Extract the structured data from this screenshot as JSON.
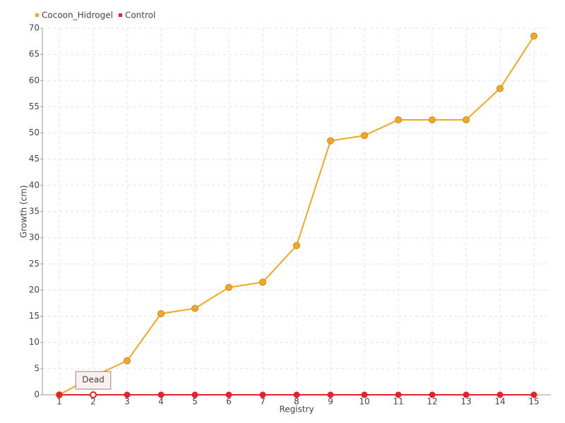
{
  "chart_data": {
    "type": "line",
    "x_label": "Registry",
    "y_label": "Growth (cm)",
    "categories": [
      "1",
      "2",
      "3",
      "4",
      "5",
      "6",
      "7",
      "8",
      "9",
      "10",
      "11",
      "12",
      "13",
      "14",
      "15"
    ],
    "series": [
      {
        "name": "Cocoon_Hidrogel",
        "color": "#f5a623",
        "values": [
          0,
          3.5,
          6.5,
          15.5,
          16.5,
          20.5,
          21.5,
          28.5,
          48.5,
          49.5,
          52.5,
          52.5,
          52.5,
          58.5,
          68.5
        ]
      },
      {
        "name": "Control",
        "color": "#e8202a",
        "values": [
          0,
          0,
          0,
          0,
          0,
          0,
          0,
          0,
          0,
          0,
          0,
          0,
          0,
          0,
          0
        ]
      }
    ],
    "annotation": {
      "text": "Dead",
      "series": 1,
      "index": 1
    },
    "ylim": [
      0,
      70
    ],
    "yticks": [
      0,
      5,
      10,
      15,
      20,
      25,
      30,
      35,
      40,
      45,
      50,
      55,
      60,
      65,
      70
    ],
    "grid": true,
    "legend": "top-left"
  }
}
